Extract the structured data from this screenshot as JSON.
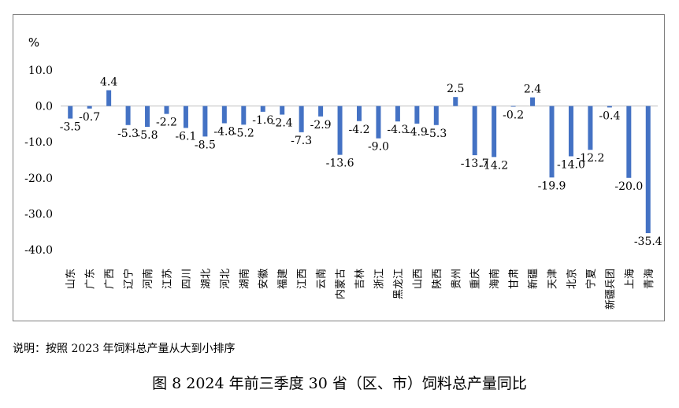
{
  "note": "说明：按照 2023 年饲料总产量从大到小排序",
  "caption": "图 8  2024 年前三季度 30 省（区、市）饲料总产量同比",
  "chart_data": {
    "type": "bar",
    "title": "图 8  2024 年前三季度 30 省（区、市）饲料总产量同比",
    "ylabel": "%",
    "xlabel": "",
    "ylim": [
      -40,
      10
    ],
    "yticks": [
      10,
      0,
      -10,
      -20,
      -30,
      -40
    ],
    "ytick_labels": [
      "10.0",
      "0.0",
      "-10.0",
      "-20.0",
      "-30.0",
      "-40.0"
    ],
    "grid": false,
    "legend": "none",
    "bar_color": "#4472c4",
    "categories": [
      "山东",
      "广东",
      "广西",
      "辽宁",
      "河南",
      "江苏",
      "四川",
      "湖北",
      "河北",
      "湖南",
      "安徽",
      "福建",
      "江西",
      "云南",
      "内蒙古",
      "吉林",
      "浙江",
      "黑龙江",
      "山西",
      "陕西",
      "贵州",
      "重庆",
      "海南",
      "甘肃",
      "新疆",
      "天津",
      "北京",
      "宁夏",
      "新疆兵团",
      "上海",
      "青海"
    ],
    "values": [
      -3.5,
      -0.7,
      4.4,
      -5.3,
      -5.8,
      -2.2,
      -6.1,
      -8.5,
      -4.8,
      -5.2,
      -1.6,
      -2.4,
      -7.3,
      -2.9,
      -13.6,
      -4.2,
      -9.0,
      -4.3,
      -4.9,
      -5.3,
      2.5,
      -13.7,
      -14.2,
      -0.2,
      2.4,
      -19.9,
      -14.0,
      -12.2,
      -0.4,
      -20.0,
      -35.4
    ],
    "data_labels": [
      "-3.5",
      "-0.7",
      "4.4",
      "-5.3",
      "-5.8",
      "-2.2",
      "-6.1",
      "-8.5",
      "-4.8",
      "-5.2",
      "-1.6",
      "-2.4",
      "-7.3",
      "-2.9",
      "-13.6",
      "-4.2",
      "-9.0",
      "-4.3",
      "-4.9",
      "-5.3",
      "2.5",
      "-13.7",
      "-14.2",
      "-0.2",
      "2.4",
      "-19.9",
      "-14.0",
      "-12.2",
      "-0.4",
      "-20.0",
      "-35.4"
    ]
  }
}
